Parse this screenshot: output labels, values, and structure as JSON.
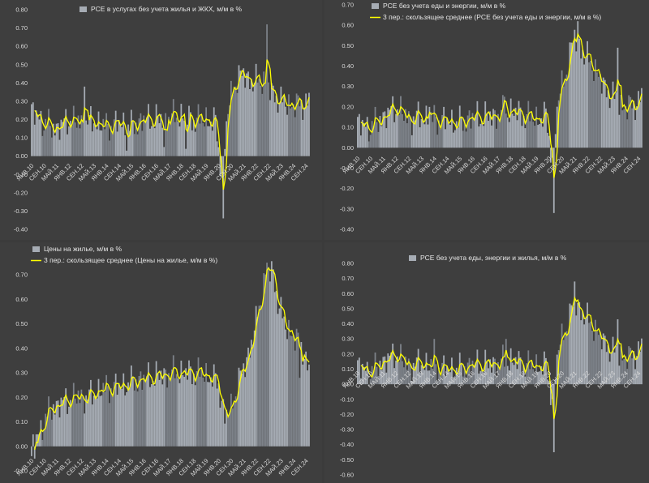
{
  "colors": {
    "bar": "#a6acb4",
    "bar_dark": "#7d8289",
    "line": "#ffff00",
    "background": "#3e3e3e",
    "text": "#d9d9d9"
  },
  "x_labels": [
    "ЯНВ.10",
    "СЕН.10",
    "МАЙ.11",
    "ЯНВ.12",
    "СЕН.12",
    "МАЙ.13",
    "ЯНВ.14",
    "СЕН.14",
    "МАЙ.15",
    "ЯНВ.16",
    "СЕН.16",
    "МАЙ.17",
    "ЯНВ.18",
    "СЕН.18",
    "МАЙ.19",
    "ЯНВ.20",
    "СЕН.20",
    "МАЙ.21",
    "ЯНВ.22",
    "СЕН.22",
    "МАЙ.23",
    "ЯНВ.24",
    "СЕН.24"
  ],
  "chart_data": [
    {
      "type": "bar",
      "legend": [
        {
          "kind": "bar",
          "label": "PCE в услугах без учета жилья и ЖКХ, м/м в %"
        }
      ],
      "ylim": [
        -0.4,
        0.8
      ],
      "y_ticks": [
        -0.4,
        -0.3,
        -0.2,
        -0.1,
        0,
        0.1,
        0.2,
        0.3,
        0.4,
        0.5,
        0.6,
        0.7,
        0.8
      ],
      "has_moving_average": true,
      "anchors": [
        [
          0,
          0.25
        ],
        [
          8,
          0.18
        ],
        [
          16,
          0.15
        ],
        [
          24,
          0.2
        ],
        [
          32,
          0.18
        ],
        [
          40,
          0.19
        ],
        [
          48,
          0.16
        ],
        [
          56,
          0.18
        ],
        [
          64,
          0.16
        ],
        [
          72,
          0.2
        ],
        [
          80,
          0.2
        ],
        [
          88,
          0.21
        ],
        [
          96,
          0.22
        ],
        [
          104,
          0.2
        ],
        [
          112,
          0.2
        ],
        [
          118,
          0.18
        ],
        [
          122,
          -0.1
        ],
        [
          126,
          0.25
        ],
        [
          130,
          0.4
        ],
        [
          136,
          0.45
        ],
        [
          142,
          0.4
        ],
        [
          148,
          0.42
        ],
        [
          154,
          0.35
        ],
        [
          160,
          0.3
        ],
        [
          166,
          0.28
        ],
        [
          172,
          0.28
        ],
        [
          178,
          0.3
        ]
      ],
      "spikes": {
        "123": -0.34,
        "151": 0.72,
        "85": 0.05,
        "34": 0.38,
        "61": 0.03,
        "99": 0.04
      }
    },
    {
      "type": "bar",
      "legend": [
        {
          "kind": "bar",
          "label": "PCE без учета еды и энергии, м/м в %"
        },
        {
          "kind": "line",
          "label": "3 пер.: скользящее среднее (PCE без учета еды и энергии, м/м в %)"
        }
      ],
      "ylim": [
        -0.4,
        0.7
      ],
      "y_ticks": [
        -0.4,
        -0.3,
        -0.2,
        -0.1,
        0,
        0.1,
        0.2,
        0.3,
        0.4,
        0.5,
        0.6,
        0.7
      ],
      "has_moving_average": true,
      "anchors": [
        [
          0,
          0.12
        ],
        [
          8,
          0.1
        ],
        [
          16,
          0.15
        ],
        [
          24,
          0.2
        ],
        [
          32,
          0.14
        ],
        [
          40,
          0.15
        ],
        [
          48,
          0.14
        ],
        [
          56,
          0.13
        ],
        [
          64,
          0.12
        ],
        [
          72,
          0.15
        ],
        [
          80,
          0.15
        ],
        [
          88,
          0.16
        ],
        [
          96,
          0.18
        ],
        [
          104,
          0.16
        ],
        [
          112,
          0.14
        ],
        [
          118,
          0.15
        ],
        [
          122,
          -0.05
        ],
        [
          126,
          0.25
        ],
        [
          130,
          0.35
        ],
        [
          136,
          0.55
        ],
        [
          142,
          0.45
        ],
        [
          148,
          0.4
        ],
        [
          154,
          0.3
        ],
        [
          160,
          0.25
        ],
        [
          166,
          0.2
        ],
        [
          172,
          0.2
        ],
        [
          178,
          0.25
        ]
      ],
      "spikes": {
        "123": -0.32,
        "138": 0.62,
        "163": 0.49,
        "45": 0.2,
        "92": 0.25
      }
    },
    {
      "type": "bar",
      "legend": [
        {
          "kind": "bar",
          "label": "Цены на жилье, м/м в %"
        },
        {
          "kind": "line",
          "label": "3 пер.: скользящее среднее (Цены на жилье, м/м в %)"
        }
      ],
      "ylim": [
        -0.1,
        0.8
      ],
      "y_ticks": [
        -0.1,
        0,
        0.1,
        0.2,
        0.3,
        0.4,
        0.5,
        0.6,
        0.7
      ],
      "has_moving_average": true,
      "anchors": [
        [
          0,
          0
        ],
        [
          4,
          0.04
        ],
        [
          8,
          0.1
        ],
        [
          12,
          0.15
        ],
        [
          20,
          0.18
        ],
        [
          28,
          0.2
        ],
        [
          36,
          0.2
        ],
        [
          44,
          0.23
        ],
        [
          52,
          0.24
        ],
        [
          60,
          0.25
        ],
        [
          68,
          0.27
        ],
        [
          76,
          0.28
        ],
        [
          84,
          0.29
        ],
        [
          92,
          0.3
        ],
        [
          100,
          0.3
        ],
        [
          108,
          0.3
        ],
        [
          116,
          0.28
        ],
        [
          120,
          0.25
        ],
        [
          124,
          0.12
        ],
        [
          128,
          0.15
        ],
        [
          132,
          0.25
        ],
        [
          138,
          0.35
        ],
        [
          144,
          0.5
        ],
        [
          150,
          0.7
        ],
        [
          154,
          0.72
        ],
        [
          158,
          0.6
        ],
        [
          162,
          0.5
        ],
        [
          168,
          0.45
        ],
        [
          174,
          0.4
        ],
        [
          178,
          0.3
        ]
      ],
      "spikes": {
        "151": 0.75,
        "172": 0.28,
        "0": -0.04,
        "2": -0.05
      }
    },
    {
      "type": "bar",
      "legend": [
        {
          "kind": "bar",
          "label": "PCE без учета еды, энергии и жилья, м/м в %"
        }
      ],
      "ylim": [
        -0.6,
        0.8
      ],
      "y_ticks": [
        -0.6,
        -0.5,
        -0.4,
        -0.3,
        -0.2,
        -0.1,
        0,
        0.1,
        0.2,
        0.3,
        0.4,
        0.5,
        0.6,
        0.7,
        0.8
      ],
      "has_moving_average": true,
      "anchors": [
        [
          0,
          0.12
        ],
        [
          8,
          0.08
        ],
        [
          16,
          0.15
        ],
        [
          24,
          0.2
        ],
        [
          32,
          0.12
        ],
        [
          40,
          0.14
        ],
        [
          48,
          0.12
        ],
        [
          56,
          0.1
        ],
        [
          64,
          0.1
        ],
        [
          72,
          0.13
        ],
        [
          80,
          0.13
        ],
        [
          88,
          0.14
        ],
        [
          96,
          0.16
        ],
        [
          104,
          0.13
        ],
        [
          112,
          0.12
        ],
        [
          118,
          0.12
        ],
        [
          122,
          -0.1
        ],
        [
          126,
          0.25
        ],
        [
          130,
          0.35
        ],
        [
          136,
          0.55
        ],
        [
          142,
          0.45
        ],
        [
          148,
          0.38
        ],
        [
          154,
          0.28
        ],
        [
          160,
          0.22
        ],
        [
          166,
          0.18
        ],
        [
          172,
          0.18
        ],
        [
          178,
          0.25
        ]
      ],
      "spikes": {
        "123": -0.45,
        "136": 0.68,
        "163": 0.43,
        "48": 0.3,
        "93": 0.3
      }
    }
  ]
}
